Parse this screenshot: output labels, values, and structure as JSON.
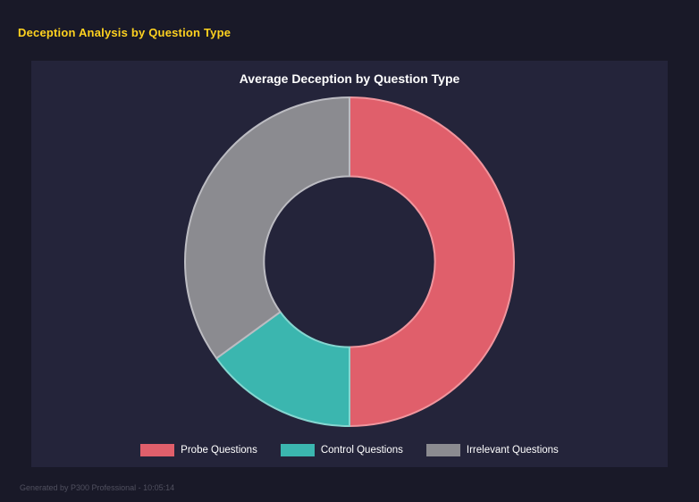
{
  "page": {
    "background": "#191928",
    "panel_background": "#24243a"
  },
  "header": {
    "title": "Deception Analysis by Question Type",
    "color": "#ffd21f"
  },
  "chart_data": {
    "type": "pie",
    "variant": "donut",
    "title": "Average Deception by Question Type",
    "categories": [
      "Probe Questions",
      "Control Questions",
      "Irrelevant Questions"
    ],
    "values": [
      50,
      15,
      35
    ],
    "colors": [
      "#e05f6b",
      "#3bb6af",
      "#8b8b90"
    ],
    "border_colors": [
      "#f0959d",
      "#86d6d0",
      "#bcbcc2"
    ],
    "start_angle_deg": -90,
    "inner_radius_ratio": 0.52,
    "legend_position": "bottom",
    "grid": false
  },
  "footer": {
    "text": "Generated by P300 Professional - 10:05:14"
  }
}
